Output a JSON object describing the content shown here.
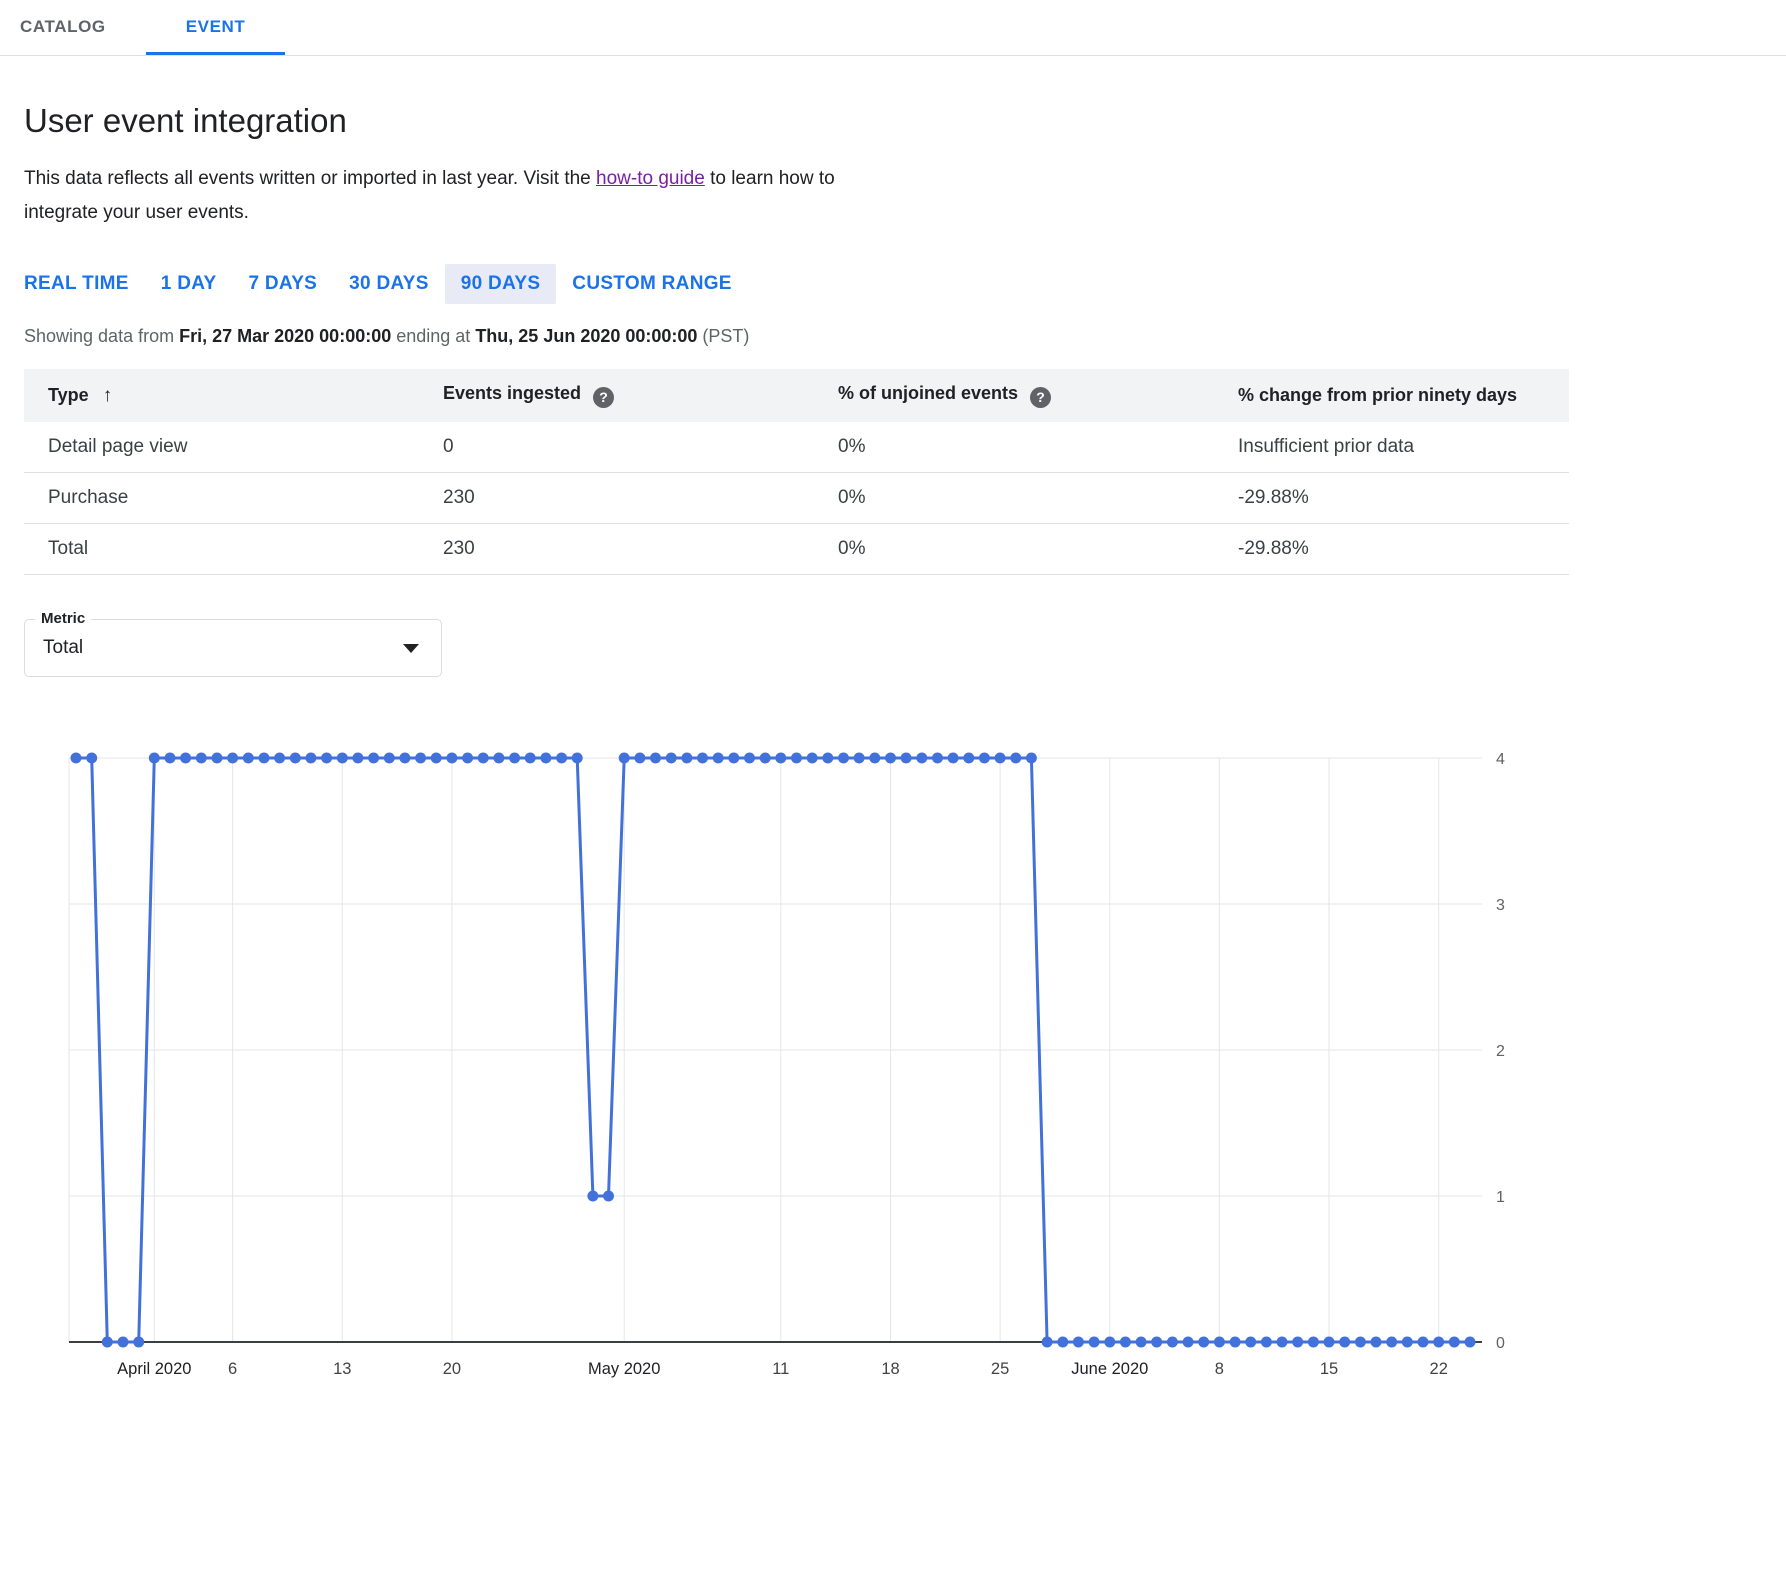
{
  "tabs": {
    "catalog": "CATALOG",
    "event": "EVENT",
    "active": "EVENT"
  },
  "header": {
    "title": "User event integration",
    "description_before_link": "This data reflects all events written or imported in last year. Visit the ",
    "link_text": "how-to guide",
    "description_after_link": " to learn how to integrate your user events."
  },
  "time_ranges": {
    "options": [
      "REAL TIME",
      "1 DAY",
      "7 DAYS",
      "30 DAYS",
      "90 DAYS",
      "CUSTOM RANGE"
    ],
    "selected": "90 DAYS"
  },
  "showing": {
    "prefix": "Showing data from ",
    "start_datetime": "Fri, 27 Mar 2020 00:00:00",
    "middle": " ending at ",
    "end_datetime": "Thu, 25 Jun 2020 00:00:00",
    "suffix": " (PST)"
  },
  "table": {
    "headers": [
      "Type",
      "Events ingested",
      "% of unjoined events",
      "% change from prior ninety days"
    ],
    "rows": [
      [
        "Detail page view",
        "0",
        "0%",
        "Insufficient prior data"
      ],
      [
        "Purchase",
        "230",
        "0%",
        "-29.88%"
      ],
      [
        "Total",
        "230",
        "0%",
        "-29.88%"
      ]
    ]
  },
  "metric": {
    "label": "Metric",
    "value": "Total"
  },
  "chart_data": {
    "type": "line",
    "series_name": "Total",
    "x_start": "27 Mar 2020",
    "x_end": "24 Jun 2020",
    "x_unit": "day",
    "ylim": [
      0,
      4
    ],
    "yticks": [
      0,
      1,
      2,
      3,
      4
    ],
    "y_axis_position": "right",
    "grid": true,
    "line_color": "#4272d9",
    "values": [
      4,
      4,
      0,
      0,
      0,
      4,
      4,
      4,
      4,
      4,
      4,
      4,
      4,
      4,
      4,
      4,
      4,
      4,
      4,
      4,
      4,
      4,
      4,
      4,
      4,
      4,
      4,
      4,
      4,
      4,
      4,
      4,
      4,
      1,
      1,
      4,
      4,
      4,
      4,
      4,
      4,
      4,
      4,
      4,
      4,
      4,
      4,
      4,
      4,
      4,
      4,
      4,
      4,
      4,
      4,
      4,
      4,
      4,
      4,
      4,
      4,
      4,
      0,
      0,
      0,
      0,
      0,
      0,
      0,
      0,
      0,
      0,
      0,
      0,
      0,
      0,
      0,
      0,
      0,
      0,
      0,
      0,
      0,
      0,
      0,
      0,
      0,
      0,
      0,
      0
    ],
    "x_ticks": [
      {
        "label": "April 2020",
        "index": 5
      },
      {
        "label": "6",
        "index": 10
      },
      {
        "label": "13",
        "index": 17
      },
      {
        "label": "20",
        "index": 24
      },
      {
        "label": "May 2020",
        "index": 35
      },
      {
        "label": "11",
        "index": 45
      },
      {
        "label": "18",
        "index": 52
      },
      {
        "label": "25",
        "index": 59
      },
      {
        "label": "June 2020",
        "index": 66
      },
      {
        "label": "8",
        "index": 73
      },
      {
        "label": "15",
        "index": 80
      },
      {
        "label": "22",
        "index": 87
      }
    ]
  },
  "colors": {
    "accent_blue": "#1a73e8",
    "link_purple": "#7b1fa2",
    "selected_range_bg": "#e8eaf6",
    "table_header_bg": "#f1f3f4",
    "chart_line": "#4272d9",
    "grid_line": "#e6e6e6"
  }
}
